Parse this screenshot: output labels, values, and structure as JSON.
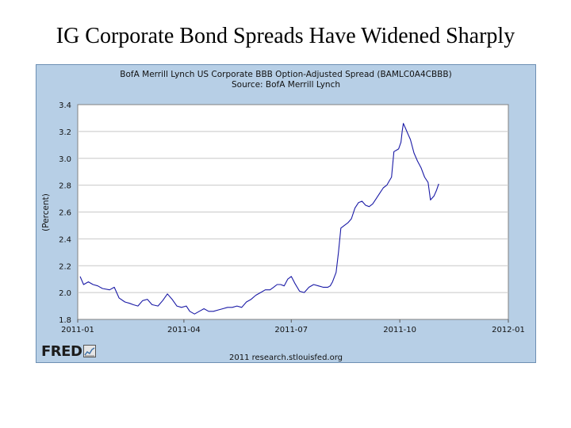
{
  "slide": {
    "title": "IG Corporate Bond Spreads Have Widened Sharply"
  },
  "fred": {
    "logo_text": "FRED",
    "logo_mark": "chart-icon",
    "credit": "2011 research.stlouisfed.org"
  },
  "chart_data": {
    "type": "line",
    "title": "BofA Merrill Lynch US Corporate BBB Option-Adjusted Spread (BAMLC0A4CBBB)",
    "subtitle": "Source: BofA Merrill Lynch",
    "ylabel": "(Percent)",
    "xlabel": "",
    "ylim": [
      1.8,
      3.4
    ],
    "yticks": [
      "1.8",
      "2.0",
      "2.2",
      "2.4",
      "2.6",
      "2.8",
      "3.0",
      "3.2",
      "3.4"
    ],
    "xlim": [
      "2011-01-01",
      "2012-01-01"
    ],
    "xticks": [
      {
        "date": "2011-01-01",
        "label": "2011-01"
      },
      {
        "date": "2011-04-01",
        "label": "2011-04"
      },
      {
        "date": "2011-07-01",
        "label": "2011-07"
      },
      {
        "date": "2011-10-01",
        "label": "2011-10"
      },
      {
        "date": "2012-01-01",
        "label": "2012-01"
      }
    ],
    "grid": "horizontal",
    "line_color": "#1a1aa6",
    "series": [
      {
        "x": [
          "2011-01-03",
          "2011-01-06",
          "2011-01-10",
          "2011-01-14",
          "2011-01-18",
          "2011-01-22",
          "2011-01-28",
          "2011-02-01",
          "2011-02-05",
          "2011-02-10",
          "2011-02-14",
          "2011-02-17",
          "2011-02-21",
          "2011-02-25",
          "2011-03-01",
          "2011-03-05",
          "2011-03-10",
          "2011-03-14",
          "2011-03-18",
          "2011-03-22",
          "2011-03-26",
          "2011-03-30",
          "2011-04-03",
          "2011-04-06",
          "2011-04-10",
          "2011-04-14",
          "2011-04-18",
          "2011-04-22",
          "2011-04-26",
          "2011-04-30",
          "2011-05-04",
          "2011-05-08",
          "2011-05-12",
          "2011-05-16",
          "2011-05-20",
          "2011-05-24",
          "2011-05-28",
          "2011-06-01",
          "2011-06-05",
          "2011-06-09",
          "2011-06-13",
          "2011-06-16",
          "2011-06-19",
          "2011-06-22",
          "2011-06-25",
          "2011-06-28",
          "2011-07-01",
          "2011-07-04",
          "2011-07-08",
          "2011-07-12",
          "2011-07-16",
          "2011-07-20",
          "2011-07-24",
          "2011-07-28",
          "2011-08-01",
          "2011-08-03",
          "2011-08-05",
          "2011-08-08",
          "2011-08-10",
          "2011-08-12",
          "2011-08-15",
          "2011-08-18",
          "2011-08-21",
          "2011-08-24",
          "2011-08-27",
          "2011-08-30",
          "2011-09-02",
          "2011-09-05",
          "2011-09-08",
          "2011-09-11",
          "2011-09-14",
          "2011-09-17",
          "2011-09-20",
          "2011-09-22",
          "2011-09-24",
          "2011-09-26",
          "2011-09-28",
          "2011-09-30",
          "2011-10-02",
          "2011-10-03",
          "2011-10-04",
          "2011-10-06",
          "2011-10-08",
          "2011-10-10",
          "2011-10-13",
          "2011-10-16",
          "2011-10-19",
          "2011-10-22",
          "2011-10-25",
          "2011-10-27",
          "2011-10-30",
          "2011-11-01",
          "2011-11-03"
        ],
        "values": [
          2.12,
          2.06,
          2.08,
          2.06,
          2.05,
          2.03,
          2.02,
          2.04,
          1.96,
          1.93,
          1.92,
          1.91,
          1.9,
          1.94,
          1.95,
          1.91,
          1.9,
          1.94,
          1.99,
          1.95,
          1.9,
          1.89,
          1.9,
          1.86,
          1.84,
          1.86,
          1.88,
          1.86,
          1.86,
          1.87,
          1.88,
          1.89,
          1.89,
          1.9,
          1.89,
          1.93,
          1.95,
          1.98,
          2.0,
          2.02,
          2.02,
          2.04,
          2.06,
          2.06,
          2.05,
          2.1,
          2.12,
          2.07,
          2.01,
          2.0,
          2.04,
          2.06,
          2.05,
          2.04,
          2.04,
          2.05,
          2.08,
          2.15,
          2.3,
          2.48,
          2.5,
          2.52,
          2.55,
          2.63,
          2.67,
          2.68,
          2.65,
          2.64,
          2.66,
          2.7,
          2.74,
          2.78,
          2.8,
          2.83,
          2.86,
          3.05,
          3.06,
          3.07,
          3.12,
          3.2,
          3.26,
          3.22,
          3.18,
          3.14,
          3.04,
          2.98,
          2.93,
          2.86,
          2.82,
          2.69,
          2.72,
          2.76,
          2.81
        ]
      }
    ]
  }
}
